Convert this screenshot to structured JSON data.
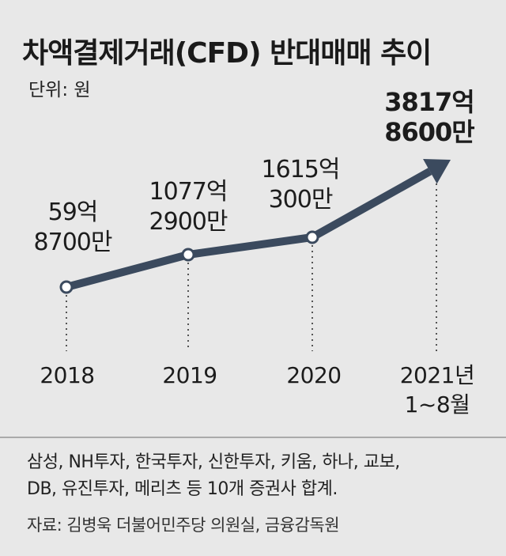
{
  "chart_data": {
    "type": "line",
    "title": "차액결제거래(CFD) 반대매매 추이",
    "unit_label": "단위: 원",
    "categories": [
      {
        "line1": "2018",
        "line2": ""
      },
      {
        "line1": "2019",
        "line2": ""
      },
      {
        "line1": "2020",
        "line2": ""
      },
      {
        "line1": "2021년",
        "line2": "1~8월"
      }
    ],
    "series": [
      {
        "values": [
          5987000000,
          107729000000,
          161503000000,
          381786000000
        ],
        "labels": [
          {
            "line1": "59억",
            "line2": "8700만"
          },
          {
            "line1": "1077억",
            "line2": "2900만"
          },
          {
            "line1": "1615억",
            "line2": "300만"
          },
          {
            "line1": "3817억",
            "line2": "8600만"
          }
        ]
      }
    ],
    "ylim": [
      0,
      450000000000
    ],
    "line_color": "#3b4a5e",
    "grid": false,
    "legend": "none"
  },
  "notes": {
    "line1": "삼성, NH투자, 한국투자, 신한투자, 키움, 하나, 교보,",
    "line2": "DB, 유진투자, 메리츠 등 10개 증권사 합계."
  },
  "source": "자료: 김병욱 더불어민주당 의원실, 금융감독원"
}
